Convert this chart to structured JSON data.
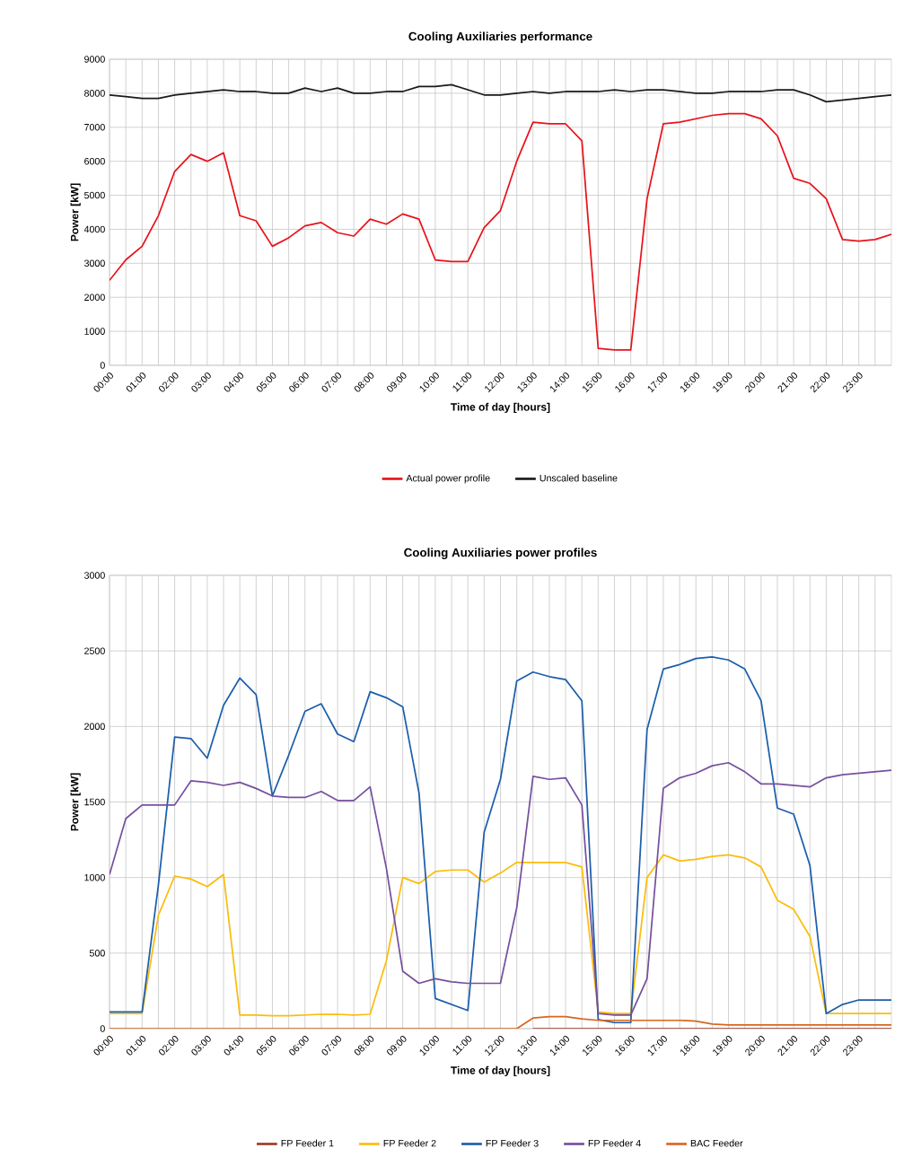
{
  "chart_data": [
    {
      "type": "line",
      "title": "Cooling Auxiliaries performance",
      "xlabel": "Time of day [hours]",
      "ylabel": "Power [kW]",
      "x": [
        0,
        0.5,
        1,
        1.5,
        2,
        2.5,
        3,
        3.5,
        4,
        4.5,
        5,
        5.5,
        6,
        6.5,
        7,
        7.5,
        8,
        8.5,
        9,
        9.5,
        10,
        10.5,
        11,
        11.5,
        12,
        12.5,
        13,
        13.5,
        14,
        14.5,
        15,
        15.5,
        16,
        16.5,
        17,
        17.5,
        18,
        18.5,
        19,
        19.5,
        20,
        20.5,
        21,
        21.5,
        22,
        22.5,
        23,
        23.5,
        24
      ],
      "xlim": [
        0,
        24
      ],
      "xticks": [
        {
          "value": 0,
          "label": "00:00"
        },
        {
          "value": 1,
          "label": "01:00"
        },
        {
          "value": 2,
          "label": "02:00"
        },
        {
          "value": 3,
          "label": "03:00"
        },
        {
          "value": 4,
          "label": "04:00"
        },
        {
          "value": 5,
          "label": "05:00"
        },
        {
          "value": 6,
          "label": "06:00"
        },
        {
          "value": 7,
          "label": "07:00"
        },
        {
          "value": 8,
          "label": "08:00"
        },
        {
          "value": 9,
          "label": "09:00"
        },
        {
          "value": 10,
          "label": "10:00"
        },
        {
          "value": 11,
          "label": "11:00"
        },
        {
          "value": 12,
          "label": "12:00"
        },
        {
          "value": 13,
          "label": "13:00"
        },
        {
          "value": 14,
          "label": "14:00"
        },
        {
          "value": 15,
          "label": "15:00"
        },
        {
          "value": 16,
          "label": "16:00"
        },
        {
          "value": 17,
          "label": "17:00"
        },
        {
          "value": 18,
          "label": "18:00"
        },
        {
          "value": 19,
          "label": "19:00"
        },
        {
          "value": 20,
          "label": "20:00"
        },
        {
          "value": 21,
          "label": "21:00"
        },
        {
          "value": 22,
          "label": "22:00"
        },
        {
          "value": 23,
          "label": "23:00"
        },
        {
          "value": 0.5,
          "label": null
        },
        {
          "value": 1.5,
          "label": null
        },
        {
          "value": 2.5,
          "label": null
        },
        {
          "value": 3.5,
          "label": null
        },
        {
          "value": 4.5,
          "label": null
        },
        {
          "value": 5.5,
          "label": null
        },
        {
          "value": 6.5,
          "label": null
        },
        {
          "value": 7.5,
          "label": null
        },
        {
          "value": 8.5,
          "label": null
        },
        {
          "value": 9.5,
          "label": null
        },
        {
          "value": 10.5,
          "label": null
        },
        {
          "value": 11.5,
          "label": null
        },
        {
          "value": 12.5,
          "label": null
        },
        {
          "value": 13.5,
          "label": null
        },
        {
          "value": 14.5,
          "label": null
        },
        {
          "value": 15.5,
          "label": null
        },
        {
          "value": 16.5,
          "label": null
        },
        {
          "value": 17.5,
          "label": null
        },
        {
          "value": 18.5,
          "label": null
        },
        {
          "value": 19.5,
          "label": null
        },
        {
          "value": 20.5,
          "label": null
        },
        {
          "value": 21.5,
          "label": null
        },
        {
          "value": 22.5,
          "label": null
        },
        {
          "value": 23.5,
          "label": null
        }
      ],
      "ylim": [
        0,
        9000
      ],
      "yticks": [
        0,
        1000,
        2000,
        3000,
        4000,
        5000,
        6000,
        7000,
        8000,
        9000
      ],
      "grid": true,
      "legend": "bottom",
      "series": [
        {
          "name": "Actual power profile",
          "color": "#e8131b",
          "values": [
            2500,
            3100,
            3500,
            4400,
            5700,
            6200,
            6000,
            6250,
            4400,
            4250,
            3500,
            3750,
            4100,
            4200,
            3900,
            3800,
            4300,
            4150,
            4450,
            4300,
            3100,
            3050,
            3050,
            4050,
            4550,
            6000,
            7150,
            7100,
            7100,
            6600,
            500,
            450,
            450,
            4900,
            7100,
            7150,
            7250,
            7350,
            7400,
            7400,
            7250,
            6750,
            5500,
            5350,
            4900,
            3700,
            3650,
            3700,
            3850
          ]
        },
        {
          "name": "Unscaled baseline",
          "color": "#1a1a1a",
          "values": [
            7950,
            7900,
            7850,
            7850,
            7950,
            8000,
            8050,
            8100,
            8050,
            8050,
            8000,
            8000,
            8150,
            8050,
            8150,
            8000,
            8000,
            8050,
            8050,
            8200,
            8200,
            8250,
            8100,
            7950,
            7950,
            8000,
            8050,
            8000,
            8050,
            8050,
            8050,
            8100,
            8050,
            8100,
            8100,
            8050,
            8000,
            8000,
            8050,
            8050,
            8050,
            8100,
            8100,
            7950,
            7750,
            7800,
            7850,
            7900,
            7950
          ]
        }
      ]
    },
    {
      "type": "line",
      "title": "Cooling Auxiliaries power profiles",
      "xlabel": "Time of day [hours]",
      "ylabel": "Power [kW]",
      "x": [
        0,
        0.5,
        1,
        1.5,
        2,
        2.5,
        3,
        3.5,
        4,
        4.5,
        5,
        5.5,
        6,
        6.5,
        7,
        7.5,
        8,
        8.5,
        9,
        9.5,
        10,
        10.5,
        11,
        11.5,
        12,
        12.5,
        13,
        13.5,
        14,
        14.5,
        15,
        15.5,
        16,
        16.5,
        17,
        17.5,
        18,
        18.5,
        19,
        19.5,
        20,
        20.5,
        21,
        21.5,
        22,
        22.5,
        23,
        23.5,
        24
      ],
      "xlim": [
        0,
        24
      ],
      "xticks": [
        {
          "value": 0,
          "label": "00:00"
        },
        {
          "value": 1,
          "label": "01:00"
        },
        {
          "value": 2,
          "label": "02:00"
        },
        {
          "value": 3,
          "label": "03:00"
        },
        {
          "value": 4,
          "label": "04:00"
        },
        {
          "value": 5,
          "label": "05:00"
        },
        {
          "value": 6,
          "label": "06:00"
        },
        {
          "value": 7,
          "label": "07:00"
        },
        {
          "value": 8,
          "label": "08:00"
        },
        {
          "value": 9,
          "label": "09:00"
        },
        {
          "value": 10,
          "label": "10:00"
        },
        {
          "value": 11,
          "label": "11:00"
        },
        {
          "value": 12,
          "label": "12:00"
        },
        {
          "value": 13,
          "label": "13:00"
        },
        {
          "value": 14,
          "label": "14:00"
        },
        {
          "value": 15,
          "label": "15:00"
        },
        {
          "value": 16,
          "label": "16:00"
        },
        {
          "value": 17,
          "label": "17:00"
        },
        {
          "value": 18,
          "label": "18:00"
        },
        {
          "value": 19,
          "label": "19:00"
        },
        {
          "value": 20,
          "label": "20:00"
        },
        {
          "value": 21,
          "label": "21:00"
        },
        {
          "value": 22,
          "label": "22:00"
        },
        {
          "value": 23,
          "label": "23:00"
        },
        {
          "value": 0.5,
          "label": null
        },
        {
          "value": 1.5,
          "label": null
        },
        {
          "value": 2.5,
          "label": null
        },
        {
          "value": 3.5,
          "label": null
        },
        {
          "value": 4.5,
          "label": null
        },
        {
          "value": 5.5,
          "label": null
        },
        {
          "value": 6.5,
          "label": null
        },
        {
          "value": 7.5,
          "label": null
        },
        {
          "value": 8.5,
          "label": null
        },
        {
          "value": 9.5,
          "label": null
        },
        {
          "value": 10.5,
          "label": null
        },
        {
          "value": 11.5,
          "label": null
        },
        {
          "value": 12.5,
          "label": null
        },
        {
          "value": 13.5,
          "label": null
        },
        {
          "value": 14.5,
          "label": null
        },
        {
          "value": 15.5,
          "label": null
        },
        {
          "value": 16.5,
          "label": null
        },
        {
          "value": 17.5,
          "label": null
        },
        {
          "value": 18.5,
          "label": null
        },
        {
          "value": 19.5,
          "label": null
        },
        {
          "value": 20.5,
          "label": null
        },
        {
          "value": 21.5,
          "label": null
        },
        {
          "value": 22.5,
          "label": null
        },
        {
          "value": 23.5,
          "label": null
        }
      ],
      "ylim": [
        0,
        3000
      ],
      "yticks": [
        0,
        500,
        1000,
        1500,
        2000,
        2500,
        3000
      ],
      "grid": true,
      "legend": "bottom",
      "series": [
        {
          "name": "FP Feeder 1",
          "color": "#a0392a",
          "values": [
            null,
            null,
            null,
            null,
            null,
            null,
            null,
            null,
            null,
            null,
            null,
            null,
            null,
            null,
            null,
            null,
            null,
            null,
            null,
            null,
            null,
            null,
            null,
            null,
            null,
            null,
            0,
            0,
            0,
            0,
            0,
            0,
            0,
            0,
            0,
            0,
            0,
            0,
            0,
            0,
            0,
            0,
            0,
            0,
            0,
            0,
            0,
            0,
            0
          ]
        },
        {
          "name": "FP Feeder 2",
          "color": "#fbbc0c",
          "values": [
            100,
            100,
            100,
            750,
            1010,
            990,
            940,
            1020,
            90,
            90,
            85,
            85,
            90,
            95,
            95,
            90,
            95,
            450,
            1000,
            960,
            1040,
            1050,
            1050,
            970,
            1030,
            1100,
            1100,
            1100,
            1100,
            1070,
            110,
            100,
            100,
            1000,
            1150,
            1110,
            1120,
            1140,
            1150,
            1130,
            1070,
            850,
            790,
            610,
            100,
            100,
            100,
            100,
            100
          ]
        },
        {
          "name": "FP Feeder 3",
          "color": "#1c5eab",
          "values": [
            110,
            110,
            110,
            950,
            1930,
            1920,
            1790,
            2140,
            2320,
            2210,
            1540,
            1810,
            2100,
            2150,
            1950,
            1900,
            2230,
            2190,
            2130,
            1560,
            200,
            160,
            120,
            1300,
            1650,
            2300,
            2360,
            2330,
            2310,
            2170,
            60,
            40,
            40,
            1980,
            2380,
            2410,
            2450,
            2460,
            2440,
            2380,
            2170,
            1460,
            1420,
            1080,
            100,
            160,
            190,
            190,
            190
          ]
        },
        {
          "name": "FP Feeder 4",
          "color": "#76509e",
          "values": [
            1020,
            1390,
            1480,
            1480,
            1480,
            1640,
            1630,
            1610,
            1630,
            1590,
            1540,
            1530,
            1530,
            1570,
            1510,
            1510,
            1600,
            1060,
            380,
            300,
            330,
            310,
            300,
            300,
            300,
            800,
            1670,
            1650,
            1660,
            1480,
            100,
            90,
            90,
            330,
            1590,
            1660,
            1690,
            1740,
            1760,
            1700,
            1620,
            1620,
            1610,
            1600,
            1660,
            1680,
            1690,
            1700,
            1710
          ]
        },
        {
          "name": "BAC Feeder",
          "color": "#d8661f",
          "values": [
            0,
            0,
            0,
            0,
            0,
            0,
            0,
            0,
            0,
            0,
            0,
            0,
            0,
            0,
            0,
            0,
            0,
            0,
            0,
            0,
            0,
            0,
            0,
            0,
            0,
            0,
            70,
            80,
            80,
            65,
            55,
            55,
            55,
            55,
            55,
            55,
            50,
            30,
            25,
            25,
            25,
            25,
            25,
            25,
            25,
            25,
            25,
            25,
            25
          ]
        }
      ]
    }
  ]
}
